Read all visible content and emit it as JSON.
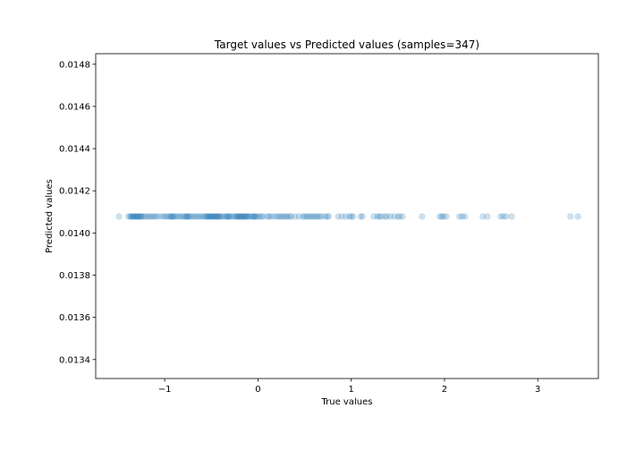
{
  "chart_data": {
    "type": "scatter",
    "title": "Target values vs Predicted values (samples=347)",
    "xlabel": "True values",
    "ylabel": "Predicted values",
    "xlim": [
      -1.74,
      3.65
    ],
    "ylim": [
      0.01331,
      0.01485
    ],
    "xticks": [
      -1,
      0,
      1,
      2,
      3
    ],
    "xtick_labels": [
      "−1",
      "0",
      "1",
      "2",
      "3"
    ],
    "yticks": [
      0.0134,
      0.0136,
      0.0138,
      0.014,
      0.0142,
      0.0144,
      0.0146,
      0.0148
    ],
    "ytick_labels": [
      "0.0134",
      "0.0136",
      "0.0138",
      "0.0140",
      "0.0142",
      "0.0144",
      "0.0146",
      "0.0148"
    ],
    "grid": false,
    "marker_color": "#1f77b4",
    "marker_alpha": 0.22,
    "series": [
      {
        "x": [
          -1.49,
          -1.39,
          -1.37,
          -1.36,
          -1.35,
          -1.34,
          -1.33,
          -1.32,
          -1.31,
          -1.3,
          -1.29,
          -1.28,
          -1.27,
          -1.26,
          -1.25,
          -1.24,
          -1.22,
          -1.2,
          -1.18,
          -1.16,
          -1.14,
          -1.12,
          -1.1,
          -1.08,
          -1.05,
          -1.02,
          -1.0,
          -0.98,
          -0.96,
          -0.94,
          -0.93,
          -0.92,
          -0.91,
          -0.9,
          -0.88,
          -0.86,
          -0.84,
          -0.82,
          -0.8,
          -0.78,
          -0.77,
          -0.76,
          -0.75,
          -0.74,
          -0.72,
          -0.7,
          -0.68,
          -0.66,
          -0.64,
          -0.62,
          -0.6,
          -0.58,
          -0.56,
          -0.55,
          -0.54,
          -0.53,
          -0.52,
          -0.51,
          -0.5,
          -0.49,
          -0.48,
          -0.47,
          -0.46,
          -0.45,
          -0.44,
          -0.43,
          -0.42,
          -0.41,
          -0.4,
          -0.38,
          -0.36,
          -0.34,
          -0.33,
          -0.32,
          -0.31,
          -0.3,
          -0.28,
          -0.26,
          -0.24,
          -0.23,
          -0.22,
          -0.21,
          -0.2,
          -0.19,
          -0.18,
          -0.17,
          -0.16,
          -0.15,
          -0.14,
          -0.13,
          -0.12,
          -0.11,
          -0.1,
          -0.08,
          -0.06,
          -0.05,
          -0.04,
          -0.03,
          -0.02,
          0.0,
          0.02,
          0.04,
          0.06,
          0.1,
          0.12,
          0.14,
          0.17,
          0.2,
          0.22,
          0.24,
          0.26,
          0.28,
          0.3,
          0.32,
          0.34,
          0.36,
          0.4,
          0.44,
          0.48,
          0.5,
          0.52,
          0.54,
          0.56,
          0.58,
          0.6,
          0.62,
          0.64,
          0.66,
          0.68,
          0.72,
          0.74,
          0.76,
          0.86,
          0.9,
          0.94,
          0.98,
          1.0,
          1.02,
          1.1,
          1.12,
          1.24,
          1.28,
          1.3,
          1.32,
          1.36,
          1.38,
          1.42,
          1.46,
          1.5,
          1.52,
          1.55,
          1.76,
          1.95,
          1.97,
          1.99,
          2.02,
          2.16,
          2.19,
          2.22,
          2.41,
          2.46,
          2.6,
          2.63,
          2.66,
          2.72,
          3.35,
          3.43
        ],
        "y_constant": 0.014078
      }
    ]
  }
}
